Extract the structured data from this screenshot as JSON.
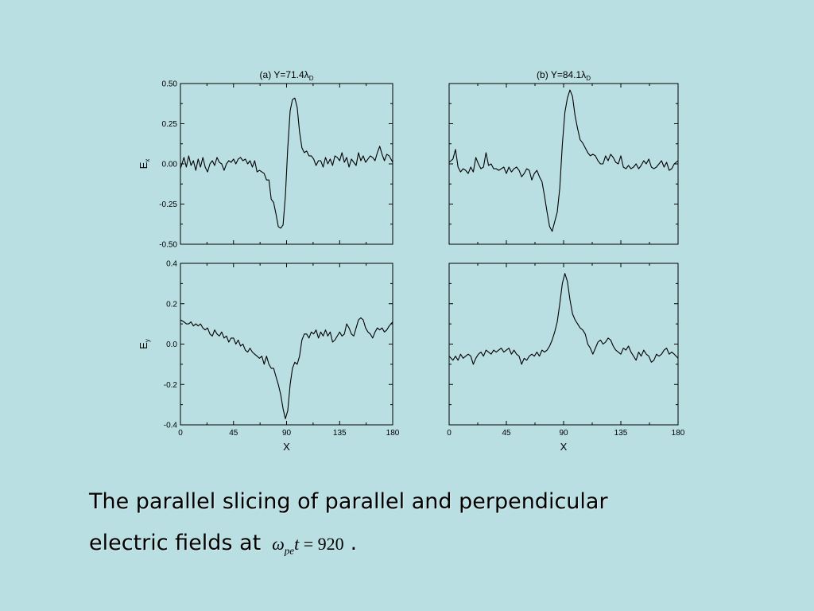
{
  "caption": {
    "line1": "The parallel slicing of parallel and perpendicular",
    "line2_prefix": "electric fields at",
    "formula": {
      "omega": "ω",
      "sub": "pe",
      "t": "t",
      "eq": " = 920"
    },
    "suffix": "."
  },
  "chart_data": [
    {
      "type": "line",
      "id": "a-ex",
      "title": "(a) Y=71.4λ",
      "title_sub": "D",
      "ylabel": "E",
      "ylabel_sub": "x",
      "xlim": [
        0,
        180
      ],
      "ylim": [
        -0.5,
        0.5
      ],
      "yticks": [
        -0.5,
        -0.25,
        0,
        0.25,
        0.5
      ],
      "ytick_labels": [
        "-0.50",
        "-0.25",
        "0.00",
        "0.25",
        "0.50"
      ],
      "x": [
        0,
        3,
        5,
        7,
        9,
        11,
        13,
        15,
        17,
        19,
        21,
        23,
        25,
        27,
        29,
        31,
        33,
        35,
        37,
        39,
        41,
        43,
        45,
        47,
        49,
        51,
        53,
        55,
        57,
        59,
        61,
        63,
        65,
        67,
        69,
        71,
        73,
        75,
        77,
        79,
        81,
        83,
        85,
        87,
        89,
        91,
        93,
        95,
        97,
        99,
        101,
        103,
        105,
        107,
        109,
        111,
        113,
        115,
        117,
        119,
        121,
        123,
        125,
        127,
        129,
        131,
        133,
        135,
        137,
        139,
        141,
        143,
        145,
        147,
        149,
        151,
        153,
        155,
        157,
        159,
        161,
        163,
        165,
        167,
        169,
        171,
        173,
        175,
        177,
        180
      ],
      "values": [
        -0.03,
        0.04,
        -0.02,
        0.05,
        -0.01,
        0.02,
        -0.04,
        0.03,
        -0.02,
        0.04,
        -0.02,
        -0.05,
        0.0,
        0.02,
        -0.01,
        0.04,
        0.01,
        0.0,
        -0.04,
        0.0,
        0.02,
        0.01,
        0.03,
        0.0,
        0.03,
        0.04,
        0.02,
        0.03,
        0.0,
        0.02,
        -0.02,
        0.02,
        -0.05,
        -0.04,
        -0.05,
        -0.06,
        -0.1,
        -0.1,
        -0.22,
        -0.24,
        -0.31,
        -0.39,
        -0.4,
        -0.38,
        -0.2,
        0.1,
        0.33,
        0.4,
        0.41,
        0.35,
        0.2,
        0.1,
        0.07,
        0.08,
        0.05,
        0.05,
        0.03,
        -0.01,
        0.02,
        0.02,
        -0.02,
        0.04,
        0.0,
        0.03,
        -0.01,
        0.05,
        0.04,
        0.02,
        0.07,
        0.01,
        0.04,
        -0.02,
        0.03,
        0.01,
        -0.01,
        0.07,
        0.02,
        0.05,
        0.01,
        0.03,
        0.05,
        0.04,
        0.02,
        0.07,
        0.11,
        0.06,
        0.02,
        0.06,
        0.05,
        0.01
      ]
    },
    {
      "type": "line",
      "id": "b-ex",
      "title": "(b) Y=84.1λ",
      "title_sub": "D",
      "xlim": [
        0,
        180
      ],
      "ylim": [
        -0.5,
        0.5
      ],
      "yticks": [
        -0.5,
        -0.25,
        0,
        0.25,
        0.5
      ],
      "x": [
        0,
        3,
        5,
        7,
        9,
        11,
        13,
        15,
        17,
        19,
        21,
        23,
        25,
        27,
        29,
        31,
        33,
        35,
        37,
        39,
        41,
        43,
        45,
        47,
        49,
        51,
        53,
        55,
        57,
        59,
        61,
        63,
        65,
        67,
        69,
        71,
        73,
        75,
        77,
        79,
        81,
        83,
        85,
        87,
        89,
        91,
        93,
        95,
        97,
        99,
        101,
        103,
        105,
        107,
        109,
        111,
        113,
        115,
        117,
        119,
        121,
        123,
        125,
        127,
        129,
        131,
        133,
        135,
        137,
        139,
        141,
        143,
        145,
        147,
        149,
        151,
        153,
        155,
        157,
        159,
        161,
        163,
        165,
        167,
        169,
        171,
        173,
        175,
        177,
        180
      ],
      "values": [
        0.01,
        0.03,
        0.09,
        -0.02,
        -0.05,
        -0.03,
        -0.04,
        -0.06,
        -0.02,
        -0.05,
        0.04,
        0.0,
        -0.03,
        -0.02,
        0.07,
        -0.01,
        0.0,
        -0.03,
        -0.03,
        -0.04,
        -0.03,
        -0.02,
        -0.06,
        -0.02,
        -0.05,
        -0.03,
        -0.02,
        -0.04,
        -0.08,
        -0.06,
        -0.03,
        -0.04,
        -0.1,
        -0.06,
        -0.04,
        -0.08,
        -0.11,
        -0.2,
        -0.3,
        -0.39,
        -0.42,
        -0.36,
        -0.3,
        -0.15,
        0.12,
        0.32,
        0.41,
        0.46,
        0.42,
        0.3,
        0.22,
        0.15,
        0.13,
        0.1,
        0.07,
        0.05,
        0.06,
        0.05,
        0.02,
        0.0,
        0.0,
        0.05,
        0.02,
        0.06,
        0.04,
        0.01,
        0.0,
        0.05,
        -0.02,
        -0.03,
        -0.01,
        -0.03,
        -0.02,
        0.0,
        -0.03,
        -0.01,
        0.02,
        0.0,
        0.03,
        -0.02,
        -0.03,
        -0.02,
        0.0,
        0.02,
        -0.02,
        0.01,
        -0.04,
        -0.03,
        0.0,
        0.02
      ]
    },
    {
      "type": "line",
      "id": "a-ey",
      "ylabel": "E",
      "ylabel_sub": "y",
      "xlabel": "X",
      "xlim": [
        0,
        180
      ],
      "ylim": [
        -0.4,
        0.4
      ],
      "xticks": [
        0,
        45,
        90,
        135,
        180
      ],
      "yticks": [
        -0.4,
        -0.2,
        0,
        0.2,
        0.4
      ],
      "ytick_labels": [
        "-0.4",
        "-0.2",
        "0.0",
        "0.2",
        "0.4"
      ],
      "x": [
        0,
        3,
        5,
        7,
        9,
        11,
        13,
        15,
        17,
        19,
        21,
        23,
        25,
        27,
        29,
        31,
        33,
        35,
        37,
        39,
        41,
        43,
        45,
        47,
        49,
        51,
        53,
        55,
        57,
        59,
        61,
        63,
        65,
        67,
        69,
        71,
        73,
        75,
        77,
        79,
        81,
        83,
        85,
        87,
        89,
        91,
        93,
        95,
        97,
        99,
        101,
        103,
        105,
        107,
        109,
        111,
        113,
        115,
        117,
        119,
        121,
        123,
        125,
        127,
        129,
        131,
        133,
        135,
        137,
        139,
        141,
        143,
        145,
        147,
        149,
        151,
        153,
        155,
        157,
        159,
        161,
        163,
        165,
        167,
        169,
        171,
        173,
        175,
        177,
        180
      ],
      "values": [
        0.12,
        0.11,
        0.1,
        0.1,
        0.11,
        0.09,
        0.1,
        0.09,
        0.1,
        0.08,
        0.07,
        0.08,
        0.05,
        0.04,
        0.07,
        0.05,
        0.04,
        0.06,
        0.03,
        0.04,
        0.01,
        0.03,
        0.03,
        0.0,
        0.02,
        -0.01,
        0.0,
        -0.03,
        -0.04,
        -0.02,
        -0.04,
        -0.05,
        -0.06,
        -0.07,
        -0.06,
        -0.1,
        -0.06,
        -0.1,
        -0.12,
        -0.12,
        -0.16,
        -0.2,
        -0.25,
        -0.32,
        -0.37,
        -0.33,
        -0.2,
        -0.12,
        -0.09,
        -0.1,
        -0.06,
        0.02,
        0.05,
        0.05,
        0.03,
        0.06,
        0.05,
        0.07,
        0.03,
        0.06,
        0.04,
        0.07,
        0.04,
        0.06,
        0.01,
        0.02,
        0.04,
        0.06,
        0.04,
        0.05,
        0.1,
        0.08,
        0.05,
        0.04,
        0.08,
        0.12,
        0.13,
        0.12,
        0.08,
        0.06,
        0.05,
        0.03,
        0.06,
        0.08,
        0.07,
        0.08,
        0.06,
        0.07,
        0.09,
        0.11
      ]
    },
    {
      "type": "line",
      "id": "b-ey",
      "xlabel": "X",
      "xlim": [
        0,
        180
      ],
      "ylim": [
        -0.4,
        0.4
      ],
      "xticks": [
        0,
        45,
        90,
        135,
        180
      ],
      "yticks": [
        -0.4,
        -0.2,
        0,
        0.2,
        0.4
      ],
      "x": [
        0,
        3,
        5,
        7,
        9,
        11,
        13,
        15,
        17,
        19,
        21,
        23,
        25,
        27,
        29,
        31,
        33,
        35,
        37,
        39,
        41,
        43,
        45,
        47,
        49,
        51,
        53,
        55,
        57,
        59,
        61,
        63,
        65,
        67,
        69,
        71,
        73,
        75,
        77,
        79,
        81,
        83,
        85,
        87,
        89,
        91,
        93,
        95,
        97,
        99,
        101,
        103,
        105,
        107,
        109,
        111,
        113,
        115,
        117,
        119,
        121,
        123,
        125,
        127,
        129,
        131,
        133,
        135,
        137,
        139,
        141,
        143,
        145,
        147,
        149,
        151,
        153,
        155,
        157,
        159,
        161,
        163,
        165,
        167,
        169,
        171,
        173,
        175,
        177,
        180
      ],
      "values": [
        -0.06,
        -0.08,
        -0.06,
        -0.08,
        -0.05,
        -0.07,
        -0.06,
        -0.05,
        -0.06,
        -0.1,
        -0.07,
        -0.05,
        -0.04,
        -0.06,
        -0.03,
        -0.04,
        -0.05,
        -0.03,
        -0.04,
        -0.03,
        -0.02,
        -0.04,
        -0.03,
        -0.02,
        -0.05,
        -0.03,
        -0.05,
        -0.06,
        -0.1,
        -0.07,
        -0.08,
        -0.06,
        -0.05,
        -0.06,
        -0.04,
        -0.06,
        -0.03,
        -0.04,
        -0.03,
        -0.01,
        0.02,
        0.06,
        0.11,
        0.2,
        0.3,
        0.35,
        0.31,
        0.22,
        0.15,
        0.12,
        0.1,
        0.08,
        0.07,
        0.05,
        0.0,
        -0.02,
        -0.05,
        -0.02,
        0.01,
        0.02,
        0.0,
        0.01,
        0.03,
        0.02,
        -0.01,
        -0.03,
        -0.04,
        -0.05,
        -0.02,
        -0.03,
        -0.01,
        -0.04,
        -0.06,
        -0.08,
        -0.04,
        -0.06,
        -0.03,
        -0.05,
        -0.06,
        -0.09,
        -0.08,
        -0.05,
        -0.06,
        -0.05,
        -0.03,
        -0.02,
        -0.05,
        -0.04,
        -0.05,
        -0.07
      ]
    }
  ]
}
